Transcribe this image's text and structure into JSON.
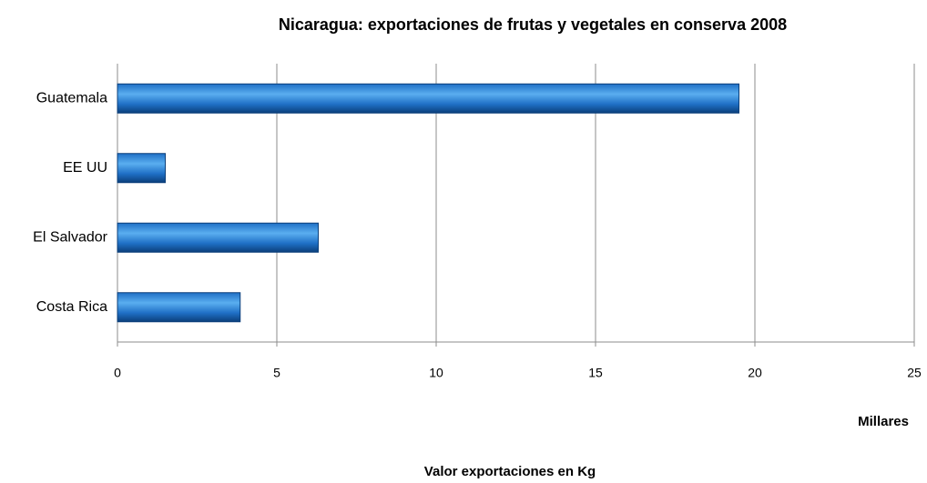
{
  "chart_data": {
    "type": "bar",
    "orientation": "horizontal",
    "title": "Nicaragua: exportaciones de frutas y vegetales en conserva 2008",
    "x_label": "Valor exportaciones en Kg",
    "x_unit_label": "Millares",
    "categories": [
      "Guatemala",
      "EE UU",
      "El Salvador",
      "Costa Rica"
    ],
    "values": [
      19.5,
      1.5,
      6.3,
      3.85
    ],
    "color": "#1f6fc5",
    "xlim": [
      0,
      25
    ],
    "xticks": [
      0,
      5,
      10,
      15,
      20,
      25
    ],
    "grid": true
  }
}
